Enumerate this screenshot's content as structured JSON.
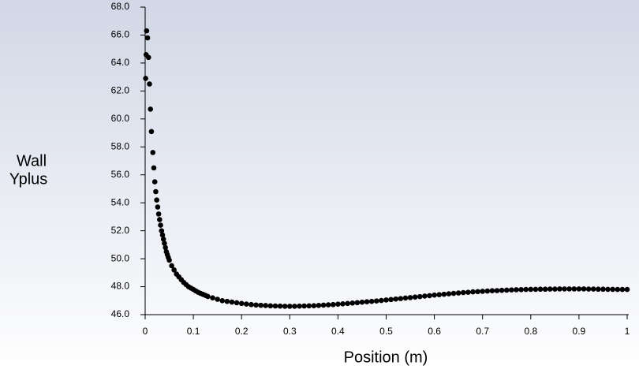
{
  "chart_data": {
    "type": "scatter",
    "xlabel": "Position (m)",
    "ylabel": [
      "Wall",
      "Yplus"
    ],
    "color": "#000000",
    "xlim": [
      0,
      1
    ],
    "xticks": [
      0,
      0.1,
      0.2,
      0.3,
      0.4,
      0.5,
      0.6,
      0.7,
      0.8,
      0.9,
      1
    ],
    "ylim": [
      46,
      68
    ],
    "yticks": [
      {
        "value": 46,
        "label": "46.0"
      },
      {
        "value": 48,
        "label": "48.0"
      },
      {
        "value": 50,
        "label": "50.0"
      },
      {
        "value": 52,
        "label": "52.0"
      },
      {
        "value": 54,
        "label": "54.0"
      },
      {
        "value": 56,
        "label": "56.0"
      },
      {
        "value": 58,
        "label": "58.0"
      },
      {
        "value": 60,
        "label": "60.0"
      },
      {
        "value": 62,
        "label": "62.0"
      },
      {
        "value": 64,
        "label": "64.0"
      },
      {
        "value": 66,
        "label": "66.0"
      },
      {
        "value": 68,
        "label": "68.0"
      }
    ],
    "x": [
      0.001,
      0.002,
      0.003,
      0.005,
      0.007,
      0.009,
      0.011,
      0.013,
      0.016,
      0.018,
      0.02,
      0.022,
      0.024,
      0.026,
      0.028,
      0.03,
      0.032,
      0.034,
      0.036,
      0.038,
      0.04,
      0.042,
      0.044,
      0.046,
      0.048,
      0.05,
      0.055,
      0.06,
      0.065,
      0.07,
      0.075,
      0.08,
      0.085,
      0.09,
      0.095,
      0.1,
      0.105,
      0.11,
      0.115,
      0.12,
      0.125,
      0.13,
      0.14,
      0.15,
      0.16,
      0.17,
      0.18,
      0.19,
      0.2,
      0.21,
      0.22,
      0.23,
      0.24,
      0.25,
      0.26,
      0.27,
      0.28,
      0.29,
      0.3,
      0.31,
      0.32,
      0.33,
      0.34,
      0.35,
      0.36,
      0.37,
      0.38,
      0.39,
      0.4,
      0.41,
      0.42,
      0.43,
      0.44,
      0.45,
      0.46,
      0.47,
      0.48,
      0.49,
      0.5,
      0.51,
      0.52,
      0.53,
      0.54,
      0.55,
      0.56,
      0.57,
      0.58,
      0.59,
      0.6,
      0.61,
      0.62,
      0.63,
      0.64,
      0.65,
      0.66,
      0.67,
      0.68,
      0.69,
      0.7,
      0.71,
      0.72,
      0.73,
      0.74,
      0.75,
      0.76,
      0.77,
      0.78,
      0.79,
      0.8,
      0.81,
      0.82,
      0.83,
      0.84,
      0.85,
      0.86,
      0.87,
      0.88,
      0.89,
      0.9,
      0.91,
      0.92,
      0.93,
      0.94,
      0.95,
      0.96,
      0.97,
      0.98,
      0.99,
      1.0
    ],
    "values": [
      62.9,
      64.6,
      66.3,
      65.8,
      64.4,
      62.5,
      60.7,
      59.1,
      57.6,
      56.5,
      55.5,
      54.8,
      54.2,
      53.7,
      53.2,
      52.8,
      52.4,
      52.0,
      51.7,
      51.4,
      51.1,
      50.8,
      50.5,
      50.3,
      50.1,
      49.9,
      49.5,
      49.2,
      48.9,
      48.7,
      48.5,
      48.3,
      48.15,
      48.0,
      47.9,
      47.8,
      47.7,
      47.6,
      47.52,
      47.45,
      47.38,
      47.3,
      47.2,
      47.1,
      47.0,
      46.95,
      46.9,
      46.85,
      46.8,
      46.76,
      46.72,
      46.69,
      46.67,
      46.65,
      46.63,
      46.62,
      46.61,
      46.6,
      46.6,
      46.6,
      46.61,
      46.62,
      46.63,
      46.64,
      46.66,
      46.68,
      46.7,
      46.72,
      46.75,
      46.77,
      46.8,
      46.83,
      46.86,
      46.89,
      46.92,
      46.95,
      46.98,
      47.01,
      47.05,
      47.08,
      47.12,
      47.15,
      47.19,
      47.22,
      47.26,
      47.29,
      47.33,
      47.36,
      47.4,
      47.43,
      47.46,
      47.49,
      47.52,
      47.55,
      47.58,
      47.6,
      47.63,
      47.65,
      47.67,
      47.69,
      47.71,
      47.72,
      47.74,
      47.75,
      47.77,
      47.78,
      47.79,
      47.8,
      47.81,
      47.81,
      47.82,
      47.82,
      47.83,
      47.83,
      47.84,
      47.84,
      47.84,
      47.84,
      47.84,
      47.84,
      47.83,
      47.83,
      47.82,
      47.82,
      47.81,
      47.81,
      47.8,
      47.8,
      47.8
    ]
  }
}
